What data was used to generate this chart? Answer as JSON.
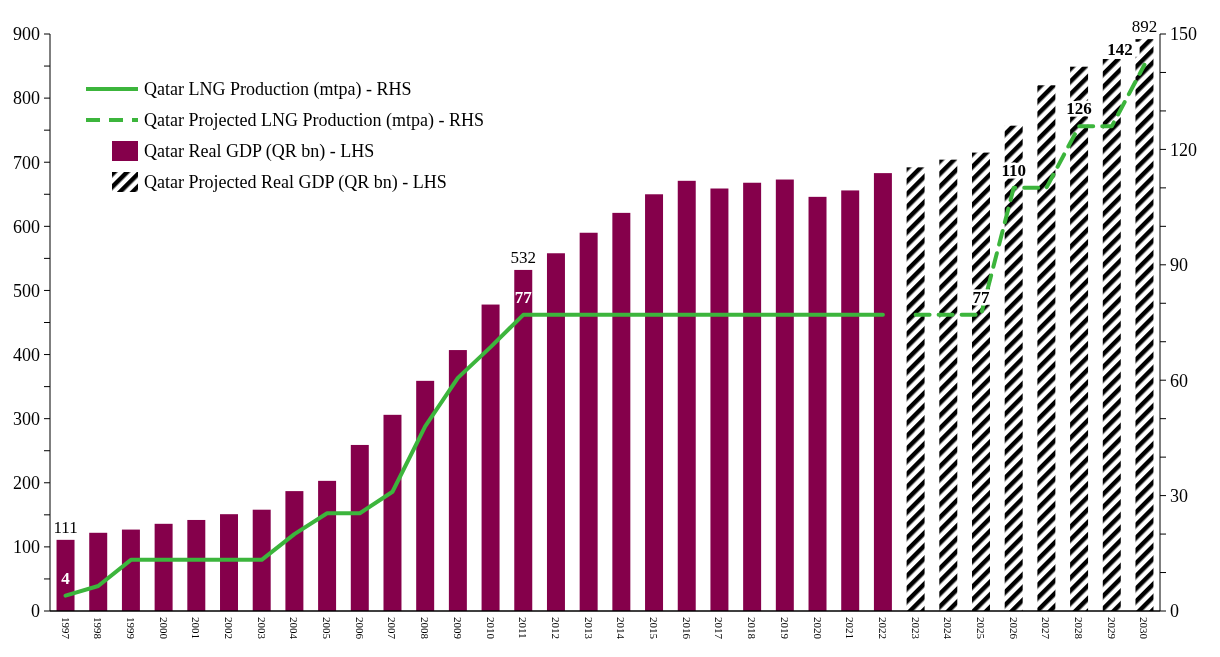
{
  "chart_data": {
    "type": "bar",
    "stacked": true,
    "legend": "top left",
    "grid": false,
    "categories": [
      "1997",
      "1998",
      "1999",
      "2000",
      "2001",
      "2002",
      "2003",
      "2004",
      "2005",
      "2006",
      "2007",
      "2008",
      "2009",
      "2010",
      "2011",
      "2012",
      "2013",
      "2014",
      "2015",
      "2016",
      "2017",
      "2018",
      "2019",
      "2020",
      "2021",
      "2022",
      "2023",
      "2024",
      "2025",
      "2026",
      "2027",
      "2028",
      "2029",
      "2030"
    ],
    "ylim": [
      0,
      900
    ],
    "yticks": [
      0,
      {
        "value": 50,
        "label": null
      },
      100,
      {
        "value": 150,
        "label": null
      },
      200,
      {
        "value": 250,
        "label": null
      },
      300,
      {
        "value": 350,
        "label": null
      },
      400,
      {
        "value": 450,
        "label": null
      },
      500,
      {
        "value": 550,
        "label": null
      },
      600,
      {
        "value": 650,
        "label": null
      },
      700,
      {
        "value": 750,
        "label": null
      },
      800,
      {
        "value": 850,
        "label": null
      },
      900
    ],
    "y2lim": [
      0,
      150
    ],
    "y2ticks": [
      0,
      {
        "value": 10,
        "label": null
      },
      {
        "value": 20,
        "label": null
      },
      30,
      {
        "value": 40,
        "label": null
      },
      {
        "value": 50,
        "label": null
      },
      60,
      {
        "value": 70,
        "label": null
      },
      {
        "value": 80,
        "label": null
      },
      90,
      {
        "value": 100,
        "label": null
      },
      {
        "value": 110,
        "label": null
      },
      120,
      {
        "value": 130,
        "label": null
      },
      {
        "value": 140,
        "label": null
      },
      150
    ],
    "series": [
      {
        "name": "Qatar LNG Production  (mtpa) - RHS",
        "type": "line",
        "axis": "y2",
        "line_style": "solid",
        "color": "#3cb53c",
        "values": [
          4,
          6.5,
          13.3,
          13.3,
          13.3,
          13.3,
          13.3,
          20,
          25.4,
          25.4,
          31,
          48,
          60.6,
          68.6,
          77,
          77,
          77,
          77,
          77,
          77,
          77,
          77,
          77,
          77,
          77,
          77,
          null,
          null,
          null,
          null,
          null,
          null,
          null,
          null
        ],
        "value_labels": [
          "4",
          null,
          null,
          null,
          null,
          null,
          null,
          null,
          null,
          null,
          null,
          null,
          null,
          null,
          "77",
          null,
          null,
          null,
          null,
          null,
          null,
          null,
          null,
          null,
          null,
          null,
          null,
          null,
          null,
          null,
          null,
          null,
          null,
          null
        ]
      },
      {
        "name": "Qatar Projected LNG Production (mtpa) - RHS",
        "type": "line",
        "axis": "y2",
        "line_style": "dashed",
        "color": "#3cb53c",
        "values": [
          null,
          null,
          null,
          null,
          null,
          null,
          null,
          null,
          null,
          null,
          null,
          null,
          null,
          null,
          null,
          null,
          null,
          null,
          null,
          null,
          null,
          null,
          null,
          null,
          null,
          null,
          77,
          77,
          77,
          110,
          110,
          126,
          126,
          142
        ],
        "value_labels": [
          null,
          null,
          null,
          null,
          null,
          null,
          null,
          null,
          null,
          null,
          null,
          null,
          null,
          null,
          null,
          null,
          null,
          null,
          null,
          null,
          null,
          null,
          null,
          null,
          null,
          null,
          null,
          null,
          "77",
          "110",
          null,
          "126",
          null,
          "142"
        ]
      },
      {
        "name": "Qatar Real GDP (QR bn) - LHS",
        "color": "#85004b",
        "values": [
          111,
          122,
          127,
          136,
          142,
          151,
          158,
          187,
          203,
          259,
          306,
          359,
          407,
          478,
          532,
          558,
          590,
          621,
          650,
          671,
          659,
          668,
          673,
          646,
          656,
          683,
          null,
          null,
          null,
          null,
          null,
          null,
          null,
          null
        ],
        "value_labels": [
          "111",
          null,
          null,
          null,
          null,
          null,
          null,
          null,
          null,
          null,
          null,
          null,
          null,
          null,
          "532",
          null,
          null,
          null,
          null,
          null,
          null,
          null,
          null,
          null,
          null,
          null,
          null,
          null,
          null,
          null,
          null,
          null,
          null,
          null
        ]
      },
      {
        "name": "Qatar Projected Real GDP (QR bn) - LHS",
        "color": "#000000",
        "values": [
          null,
          null,
          null,
          null,
          null,
          null,
          null,
          null,
          null,
          null,
          null,
          null,
          null,
          null,
          null,
          null,
          null,
          null,
          null,
          null,
          null,
          null,
          null,
          null,
          null,
          null,
          692,
          704,
          715,
          757,
          820,
          849,
          861,
          892
        ],
        "value_labels": [
          null,
          null,
          null,
          null,
          null,
          null,
          null,
          null,
          null,
          null,
          null,
          null,
          null,
          null,
          null,
          null,
          null,
          null,
          null,
          null,
          null,
          null,
          null,
          null,
          null,
          null,
          null,
          null,
          null,
          null,
          null,
          null,
          null,
          "892"
        ]
      }
    ]
  }
}
